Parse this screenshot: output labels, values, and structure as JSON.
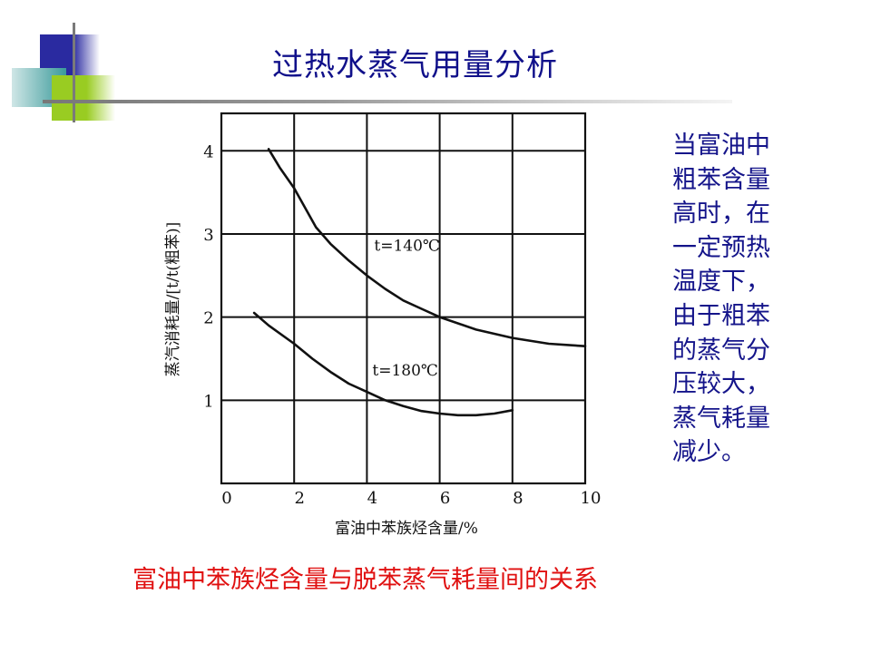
{
  "slide": {
    "title": "过热水蒸气用量分析",
    "side_text": [
      "当富油中",
      "粗苯含量",
      "高时，在",
      "一定预热",
      "温度下，",
      "由于粗苯",
      "的蒸气分",
      "压较大，",
      "蒸气耗量",
      "减少。"
    ],
    "caption": "富油中苯族烃含量与脱苯蒸气耗量间的关系",
    "colors": {
      "title": "#10108a",
      "side_text": "#14148a",
      "caption": "#e01010",
      "deco_blue": "#2a2aa0",
      "deco_green": "#99cc22",
      "deco_teal": "#3a9a9a"
    }
  },
  "chart_data": {
    "type": "line",
    "title": "",
    "xlabel": "富油中苯族烃含量/%",
    "ylabel": "蒸汽消耗量/[t/t(粗苯)]",
    "xlim": [
      0,
      10
    ],
    "ylim": [
      0,
      4.45
    ],
    "xticks": [
      "0",
      "2",
      "4",
      "6",
      "8",
      "10"
    ],
    "yticks": [
      "1",
      "2",
      "3",
      "4"
    ],
    "grid": true,
    "series": [
      {
        "name": "t=140℃",
        "x": [
          1.3,
          1.6,
          2,
          2.6,
          3,
          3.5,
          4,
          4.5,
          5,
          5.5,
          6,
          7,
          8,
          9,
          10
        ],
        "y": [
          4.02,
          3.8,
          3.55,
          3.08,
          2.88,
          2.68,
          2.5,
          2.34,
          2.2,
          2.1,
          2.0,
          1.85,
          1.75,
          1.68,
          1.65
        ]
      },
      {
        "name": "t=180℃",
        "x": [
          0.9,
          1.3,
          2,
          2.5,
          3,
          3.5,
          4,
          4.5,
          5,
          5.5,
          6,
          6.5,
          7,
          7.5,
          8
        ],
        "y": [
          2.05,
          1.9,
          1.68,
          1.5,
          1.34,
          1.2,
          1.1,
          1.0,
          0.93,
          0.87,
          0.84,
          0.82,
          0.82,
          0.84,
          0.88
        ]
      }
    ],
    "annotations": [
      {
        "text": "t=140℃",
        "x": 4.2,
        "y": 2.8
      },
      {
        "text": "t=180℃",
        "x": 4.15,
        "y": 1.3
      }
    ]
  }
}
